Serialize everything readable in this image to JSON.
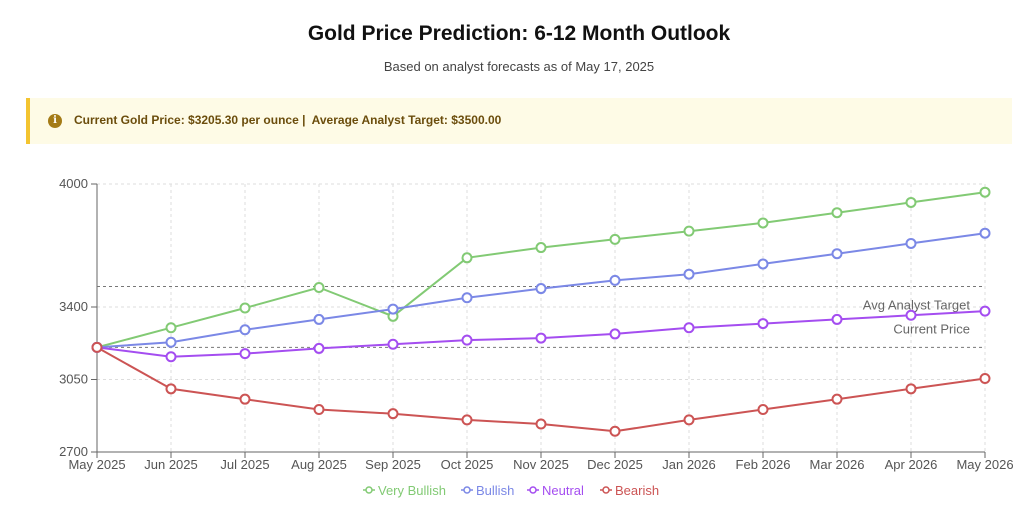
{
  "page": {
    "title": "Gold Price Prediction: 6-12 Month Outlook",
    "subtitle": "Based on analyst forecasts as of May 17, 2025"
  },
  "banner": {
    "icon": "info-icon",
    "text": "Current Gold Price: $3205.30 per ounce |  Average Analyst Target: $3500.00",
    "color": "#f3c430"
  },
  "chart_data": {
    "type": "line",
    "title": "",
    "xlabel": "",
    "ylabel": "",
    "categories": [
      "May 2025",
      "Jun 2025",
      "Jul 2025",
      "Aug 2025",
      "Sep 2025",
      "Oct 2025",
      "Nov 2025",
      "Dec 2025",
      "Jan 2026",
      "Feb 2026",
      "Mar 2026",
      "Apr 2026",
      "May 2026"
    ],
    "ylim": [
      2700,
      4000
    ],
    "yticks": [
      2700,
      3050,
      3400,
      4000
    ],
    "grid": true,
    "legend_position": "bottom",
    "series": [
      {
        "name": "Very Bullish",
        "color": "#82ca74",
        "values": [
          3205,
          3300,
          3395,
          3495,
          3355,
          3640,
          3690,
          3730,
          3770,
          3810,
          3860,
          3910,
          3960
        ]
      },
      {
        "name": "Bullish",
        "color": "#7b88e6",
        "values": [
          3205,
          3230,
          3290,
          3340,
          3390,
          3445,
          3490,
          3530,
          3560,
          3610,
          3660,
          3710,
          3760
        ]
      },
      {
        "name": "Neutral",
        "color": "#a44df0",
        "values": [
          3205,
          3160,
          3175,
          3200,
          3220,
          3240,
          3250,
          3270,
          3300,
          3320,
          3340,
          3360,
          3380
        ]
      },
      {
        "name": "Bearish",
        "color": "#cc5454",
        "values": [
          3205,
          3005,
          2955,
          2905,
          2885,
          2855,
          2835,
          2800,
          2855,
          2905,
          2955,
          3005,
          3055
        ]
      }
    ],
    "reference_lines": [
      {
        "label": "Avg Analyst Target",
        "value": 3500
      },
      {
        "label": "Current Price",
        "value": 3205.3
      }
    ]
  }
}
